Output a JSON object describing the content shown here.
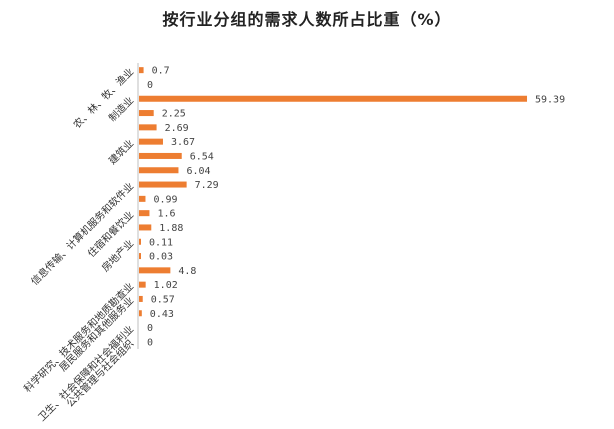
{
  "chart_data": {
    "type": "bar",
    "orientation": "horizontal",
    "title": "按行业分组的需求人数所占比重（%）",
    "color": "#ed7d31",
    "categories": [
      "农、林、牧、渔业",
      "",
      "制造业",
      "",
      "",
      "建筑业",
      "",
      "",
      "信息传输、计算机服务和软件业",
      "",
      "住宿和餐饮业",
      "",
      "房地产业",
      "",
      "",
      "科学研究、技术服务和地质勘查业",
      "居民服务和其他服务业",
      "",
      "卫生、社会保障和社会福利业",
      "公共管理与社会组织"
    ],
    "values": [
      0.7,
      0,
      59.39,
      2.25,
      2.69,
      3.67,
      6.54,
      6.04,
      7.29,
      0.99,
      1.6,
      1.88,
      0.11,
      0.03,
      4.8,
      1.02,
      0.57,
      0.43,
      0,
      0
    ],
    "value_labels": [
      "0.7",
      "0",
      "59.39",
      "2.25",
      "2.69",
      "3.67",
      "6.54",
      "6.04",
      "7.29",
      "0.99",
      "1.6",
      "1.88",
      "0.11",
      "0.03",
      "4.8",
      "1.02",
      "0.57",
      "0.43",
      "0",
      "0"
    ],
    "xlim": [
      0,
      60
    ],
    "xlabel": "",
    "ylabel": "",
    "grid": false,
    "legend": "none"
  }
}
